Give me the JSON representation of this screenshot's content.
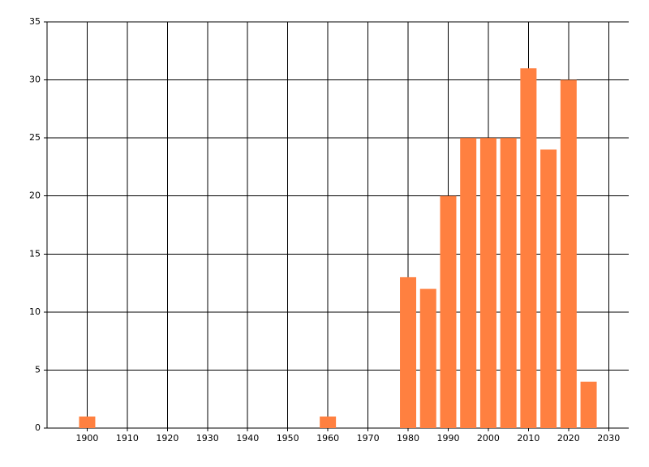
{
  "chart_data": {
    "type": "bar",
    "x": [
      1900,
      1960,
      1980,
      1985,
      1990,
      1995,
      2000,
      2005,
      2010,
      2015,
      2020,
      2025
    ],
    "values": [
      1,
      1,
      13,
      12,
      20,
      25,
      25,
      25,
      31,
      24,
      30,
      4
    ],
    "color": "#ff8040",
    "xlim": [
      1890,
      2035
    ],
    "xticks": [
      1900,
      1910,
      1920,
      1930,
      1940,
      1950,
      1960,
      1970,
      1980,
      1990,
      2000,
      2010,
      2020,
      2030
    ],
    "ylim": [
      0,
      35
    ],
    "yticks": [
      0,
      5,
      10,
      15,
      20,
      25,
      30,
      35
    ],
    "grid": true
  }
}
